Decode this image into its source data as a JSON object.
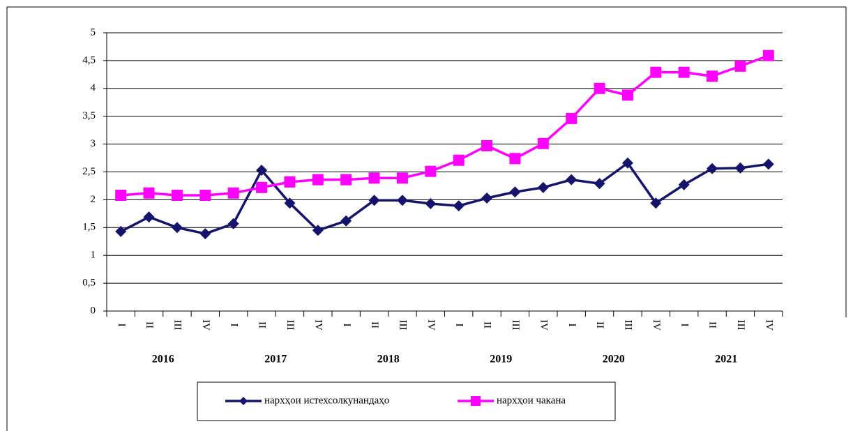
{
  "chart_data": {
    "type": "line",
    "categories": [
      "I",
      "II",
      "III",
      "IV",
      "I",
      "II",
      "III",
      "IV",
      "I",
      "II",
      "III",
      "IV",
      "I",
      "II",
      "III",
      "IV",
      "I",
      "II",
      "III",
      "IV",
      "I",
      "II",
      "III",
      "IV"
    ],
    "year_groups": [
      "2016",
      "2017",
      "2018",
      "2019",
      "2020",
      "2021"
    ],
    "series": [
      {
        "name": "нархҳои истехсолкунандаҳо",
        "color": "#14146e",
        "marker": "diamond",
        "values": [
          1.43,
          1.69,
          1.5,
          1.39,
          1.57,
          2.53,
          1.94,
          1.45,
          1.62,
          1.99,
          1.99,
          1.93,
          1.89,
          2.03,
          2.14,
          2.22,
          2.36,
          2.29,
          2.66,
          1.94,
          2.27,
          2.56,
          2.57,
          2.64
        ]
      },
      {
        "name": "нархҳои чакана",
        "color": "#ff00ff",
        "marker": "square",
        "values": [
          2.08,
          2.12,
          2.08,
          2.08,
          2.12,
          2.22,
          2.32,
          2.36,
          2.36,
          2.39,
          2.39,
          2.51,
          2.71,
          2.97,
          2.74,
          3.01,
          3.46,
          4.0,
          3.88,
          4.29,
          4.29,
          4.22,
          4.4,
          4.59
        ]
      }
    ],
    "ylim": [
      0,
      5
    ],
    "yticks": [
      0,
      {
        "value": 0.5,
        "label": "0,5"
      },
      1,
      {
        "value": 1.5,
        "label": "1,5"
      },
      2,
      {
        "value": 2.5,
        "label": "2,5"
      },
      3,
      {
        "value": 3.5,
        "label": "3,5"
      },
      4,
      {
        "value": 4.5,
        "label": "4,5"
      },
      5
    ],
    "grid": true,
    "legend": "bottom"
  }
}
